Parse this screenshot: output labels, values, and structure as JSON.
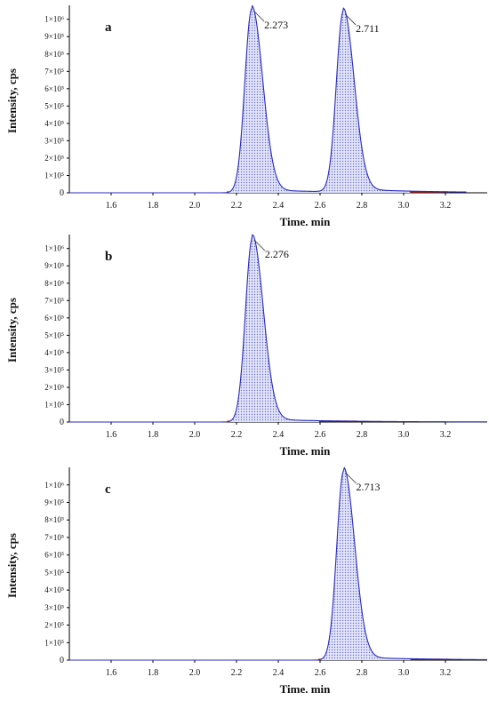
{
  "chart_data": [
    {
      "type": "area",
      "panel_label": "a",
      "xlabel": "Time. min",
      "ylabel": "Intensity, cps",
      "xlim": [
        1.4,
        3.4
      ],
      "ylim": [
        0,
        1060000
      ],
      "x_ticks": [
        "1.6",
        "1.8",
        "2.0",
        "2.2",
        "2.4",
        "2.6",
        "2.8",
        "3.0",
        "3.2"
      ],
      "y_ticks": [
        "0",
        "1×10⁵",
        "2×10⁵",
        "3×10⁵",
        "4×10⁵",
        "5×10⁵",
        "6×10⁵",
        "7×10⁵",
        "8×10⁵",
        "9×10⁵",
        "1×10⁶"
      ],
      "peaks": [
        {
          "rt": 2.273,
          "height": 1060000,
          "label": "2.273"
        },
        {
          "rt": 2.711,
          "height": 1040000,
          "label": "2.711"
        }
      ],
      "trace_range": [
        1.4,
        3.3
      ]
    },
    {
      "type": "area",
      "panel_label": "b",
      "xlabel": "Time. min",
      "ylabel": "Intensity, cps",
      "xlim": [
        1.4,
        3.4
      ],
      "ylim": [
        0,
        1060000
      ],
      "x_ticks": [
        "1.6",
        "1.8",
        "2.0",
        "2.2",
        "2.4",
        "2.6",
        "2.8",
        "3.0",
        "3.2"
      ],
      "y_ticks": [
        "0",
        "1×10⁵",
        "2×10⁵",
        "3×10⁵",
        "4×10⁵",
        "5×10⁵",
        "6×10⁵",
        "7×10⁵",
        "8×10⁵",
        "9×10⁵",
        "1×10⁶"
      ],
      "peaks": [
        {
          "rt": 2.276,
          "height": 1060000,
          "label": "2.276"
        }
      ],
      "trace_range": [
        1.4,
        3.4
      ]
    },
    {
      "type": "area",
      "panel_label": "c",
      "xlabel": "Time. min",
      "ylabel": "Intensity, cps",
      "xlim": [
        1.4,
        3.4
      ],
      "ylim": [
        0,
        1080000
      ],
      "x_ticks": [
        "1.6",
        "1.8",
        "2.0",
        "2.2",
        "2.4",
        "2.6",
        "2.8",
        "3.0",
        "3.2"
      ],
      "y_ticks": [
        "0",
        "1×10⁵",
        "2×10⁵",
        "3×10⁵",
        "4×10⁵",
        "5×10⁵",
        "6×10⁵",
        "7×10⁵",
        "8×10⁵",
        "9×10⁵",
        "1×10⁶"
      ],
      "peaks": [
        {
          "rt": 2.713,
          "height": 1080000,
          "label": "2.713"
        }
      ],
      "trace_range": [
        1.4,
        3.4
      ]
    }
  ],
  "colors": {
    "trace": "#2b2bbf",
    "baseline": "#cc2222",
    "fill": "#c9cdf2"
  }
}
